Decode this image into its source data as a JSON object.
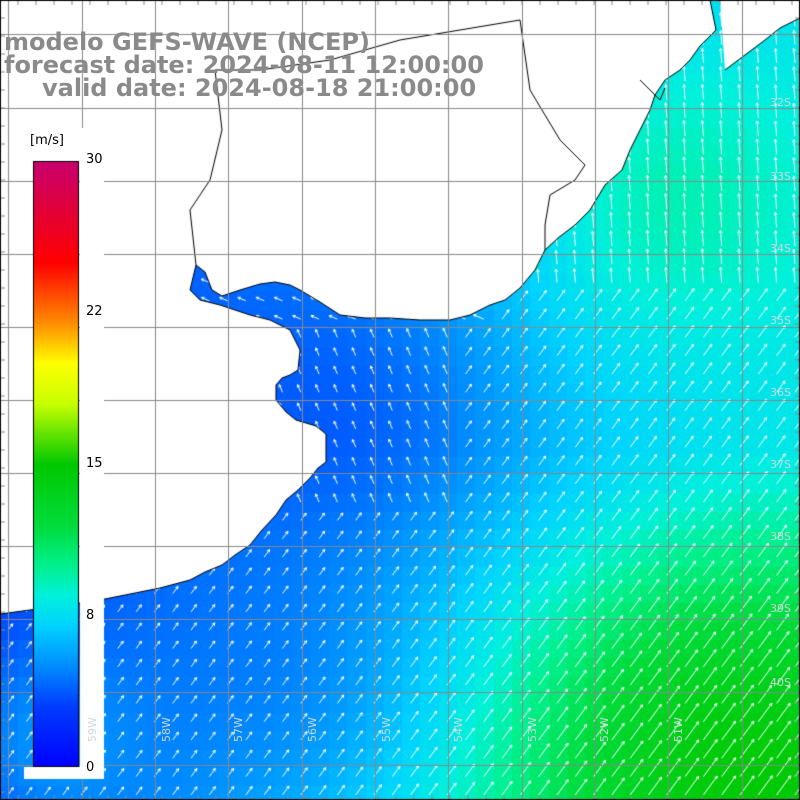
{
  "header": {
    "title": "modelo GEFS-WAVE (NCEP)",
    "forecast_date": "forecast date: 2024-08-11 12:00:00",
    "valid_date": "valid date: 2024-08-18 21:00:00"
  },
  "colorbar": {
    "unit": "[m/s]",
    "min": 0,
    "max": 30,
    "ticks": [
      "30",
      "22",
      "15",
      "8",
      "0"
    ],
    "tick_values": [
      30,
      22,
      15,
      8,
      0
    ],
    "colors": [
      "#0000ff",
      "#0080ff",
      "#00e0ff",
      "#00ff80",
      "#00e000",
      "#a0ff00",
      "#ffff00",
      "#ff8000",
      "#ff0000",
      "#c0006a"
    ]
  },
  "map": {
    "land_color": "#ffffff",
    "coast_color": "#000000",
    "grid_color": "#888888",
    "lat_labels": [
      "32S",
      "33S",
      "34S",
      "35S",
      "36S",
      "37S",
      "38S",
      "39S",
      "40S"
    ],
    "lon_labels": [
      "59W",
      "58W",
      "57W",
      "56W",
      "55W",
      "54W",
      "53W",
      "52W",
      "51W"
    ]
  },
  "legend_bar_layout_note": ""
}
